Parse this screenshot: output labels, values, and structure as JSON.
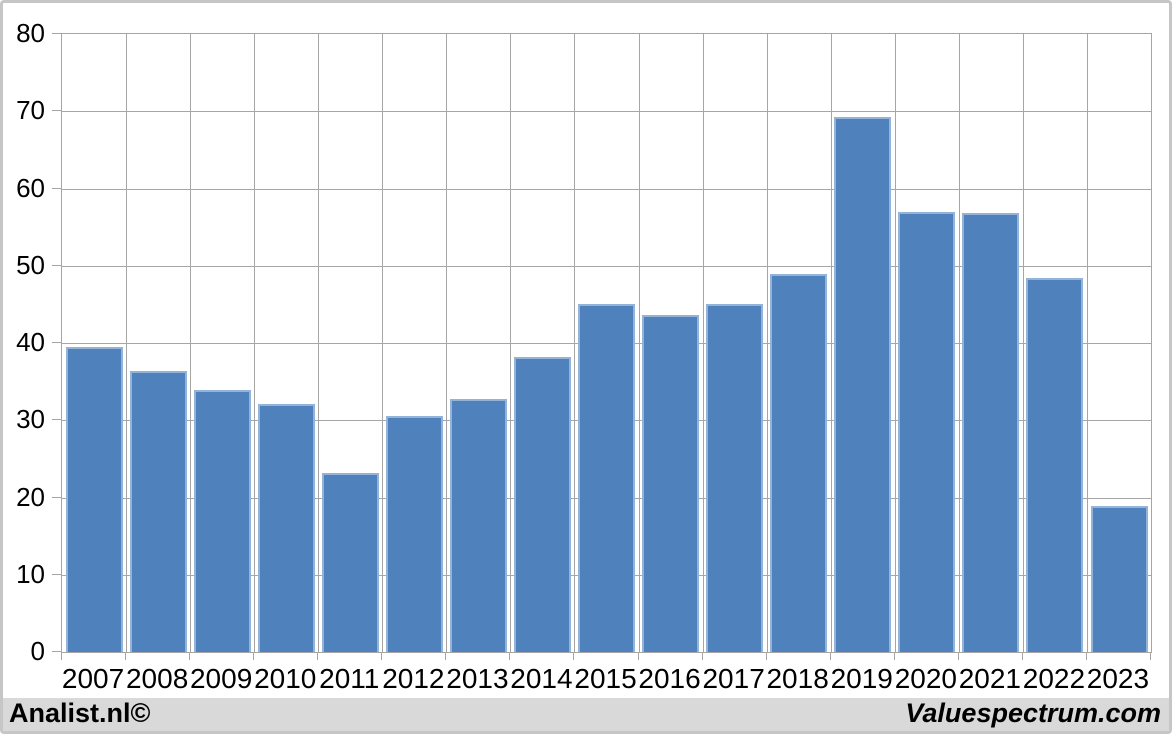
{
  "footer": {
    "left": "Analist.nl©",
    "right": "Valuespectrum.com"
  },
  "colors": {
    "bar_fill": "#4f81bd",
    "bar_border": "#95b3d7",
    "gridline": "#a6a6a6",
    "axis_text": "#000000",
    "footer_bg": "#d9d9d9",
    "frame_border": "#c6c6c6"
  },
  "chart_data": {
    "type": "bar",
    "title": "",
    "xlabel": "",
    "ylabel": "",
    "categories": [
      "2007",
      "2008",
      "2009",
      "2010",
      "2011",
      "2012",
      "2013",
      "2014",
      "2015",
      "2016",
      "2017",
      "2018",
      "2019",
      "2020",
      "2021",
      "2022",
      "2023"
    ],
    "values": [
      39.5,
      36.4,
      33.9,
      32.1,
      23.2,
      30.6,
      32.7,
      38.2,
      45.0,
      43.6,
      45.0,
      48.9,
      69.2,
      56.9,
      56.8,
      48.4,
      18.9
    ],
    "ylim": [
      0,
      80
    ],
    "ytick_step": 10,
    "ytick_labels": [
      "0",
      "10",
      "20",
      "30",
      "40",
      "50",
      "60",
      "70",
      "80"
    ],
    "grid": true,
    "legend": "none"
  }
}
